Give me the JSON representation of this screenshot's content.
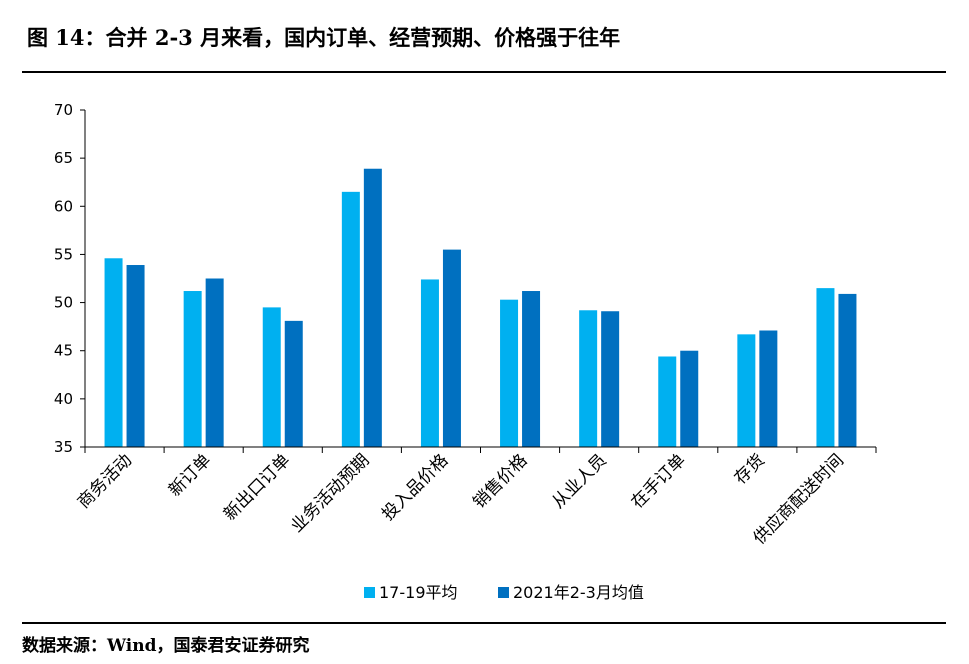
{
  "title": "图 14：合并 2-3 月来看，国内订单、经营预期、价格强于往年",
  "source": "数据来源：Wind，国泰君安证券研究",
  "colors": {
    "series1": "#00B0F0",
    "series2": "#0070C0",
    "axis": "#000000"
  },
  "chart_data": {
    "type": "bar",
    "title": "",
    "xlabel": "",
    "ylabel": "",
    "ylim": [
      35,
      70
    ],
    "yticks": [
      35,
      40,
      45,
      50,
      55,
      60,
      65,
      70
    ],
    "grid": false,
    "legend_position": "bottom",
    "categories": [
      "商务活动",
      "新订单",
      "新出口订单",
      "业务活动预期",
      "投入品价格",
      "销售价格",
      "从业人员",
      "在手订单",
      "存货",
      "供应商配送时间"
    ],
    "series": [
      {
        "name": "17-19平均",
        "values": [
          54.6,
          51.2,
          49.5,
          61.5,
          52.4,
          50.3,
          49.2,
          44.4,
          46.7,
          51.5
        ]
      },
      {
        "name": "2021年2-3月均值",
        "values": [
          53.9,
          52.5,
          48.1,
          63.9,
          55.5,
          51.2,
          49.1,
          45.0,
          47.1,
          50.9
        ]
      }
    ]
  }
}
